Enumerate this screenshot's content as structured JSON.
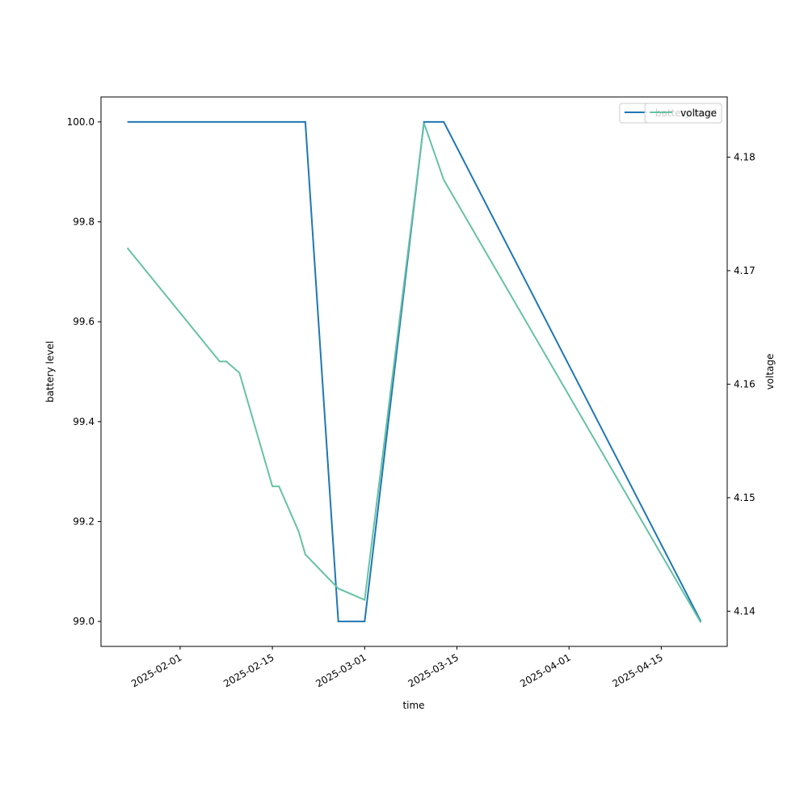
{
  "chart_data": {
    "type": "line",
    "x": [
      "2025-01-24",
      "2025-02-07",
      "2025-02-08",
      "2025-02-10",
      "2025-02-15",
      "2025-02-16",
      "2025-02-19",
      "2025-02-20",
      "2025-02-25",
      "2025-03-01",
      "2025-03-10",
      "2025-03-13",
      "2025-04-21"
    ],
    "series": [
      {
        "name": "battery level",
        "color": "#1f77b4",
        "axis": "y",
        "values": [
          100,
          100,
          100,
          100,
          100,
          100,
          100,
          100,
          99,
          99,
          100,
          100,
          99
        ]
      },
      {
        "name": "voltage",
        "color": "#66c2a5",
        "axis": "y2",
        "values": [
          4.172,
          4.162,
          4.162,
          4.161,
          4.151,
          4.151,
          4.147,
          4.145,
          4.142,
          4.141,
          4.183,
          4.178,
          4.139
        ]
      }
    ],
    "xlabel": "time",
    "ylabel": "battery level",
    "y2label": "voltage",
    "xlim": [
      "2025-01-20",
      "2025-04-25"
    ],
    "xticks": [
      "2025-02-01",
      "2025-02-15",
      "2025-03-01",
      "2025-03-15",
      "2025-04-01",
      "2025-04-15"
    ],
    "ylim": [
      98.95,
      100.05
    ],
    "yticks": [
      {
        "value": 99,
        "label": "99.0"
      },
      99.2,
      99.4,
      99.6,
      99.8,
      {
        "value": 100,
        "label": "100.0"
      }
    ],
    "y2lim": [
      4.1369,
      4.1853
    ],
    "y2ticks": [
      4.14,
      4.15,
      4.16,
      4.17,
      4.18
    ],
    "legend": "upper right"
  }
}
